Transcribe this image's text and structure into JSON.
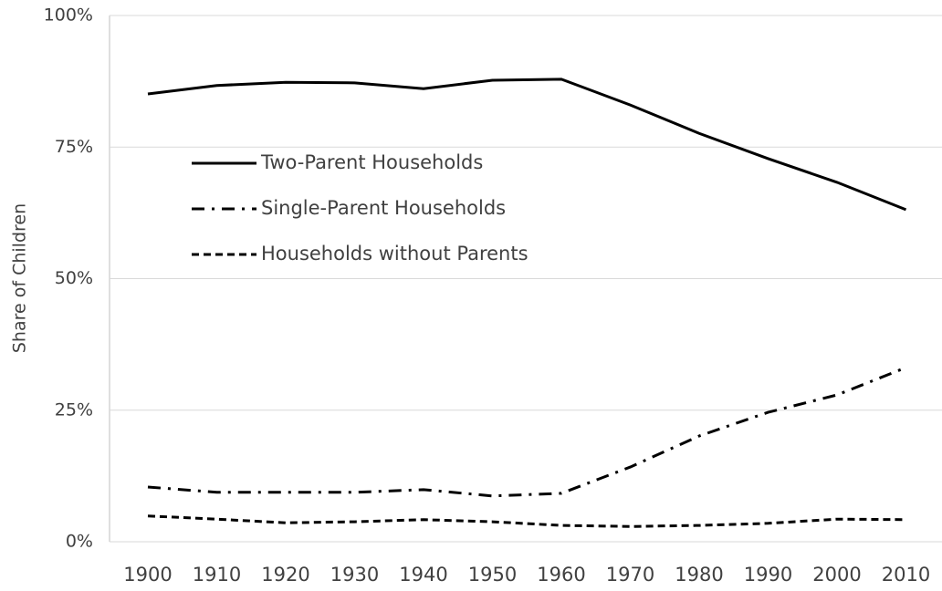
{
  "chart_data": {
    "type": "line",
    "y_label": "Share of Children",
    "categories": [
      "1900",
      "1910",
      "1920",
      "1930",
      "1940",
      "1950",
      "1960",
      "1970",
      "1980",
      "1990",
      "2000",
      "2010"
    ],
    "series": [
      {
        "name": "Two-Parent Households",
        "color": "#000000",
        "line_style": "solid",
        "values": [
          85.1,
          86.7,
          87.3,
          87.2,
          86.1,
          87.7,
          87.9,
          83.0,
          77.6,
          72.8,
          68.3,
          63.1
        ]
      },
      {
        "name": "Single-Parent Households",
        "color": "#000000",
        "line_style": "dashdot",
        "values": [
          10.4,
          9.4,
          9.4,
          9.4,
          9.9,
          8.7,
          9.2,
          14.2,
          20.1,
          24.6,
          27.9,
          33.1
        ]
      },
      {
        "name": "Households without Parents",
        "color": "#000000",
        "line_style": "dashed",
        "values": [
          4.9,
          4.3,
          3.6,
          3.8,
          4.2,
          3.8,
          3.1,
          2.9,
          3.1,
          3.5,
          4.3,
          4.2
        ]
      }
    ],
    "ylim": [
      0,
      100
    ],
    "yticks": [
      {
        "value": 0,
        "label": "0%"
      },
      {
        "value": 25,
        "label": "25%"
      },
      {
        "value": 50,
        "label": "50%"
      },
      {
        "value": 75,
        "label": "75%"
      },
      {
        "value": 100,
        "label": "100%"
      }
    ],
    "grid": true
  }
}
